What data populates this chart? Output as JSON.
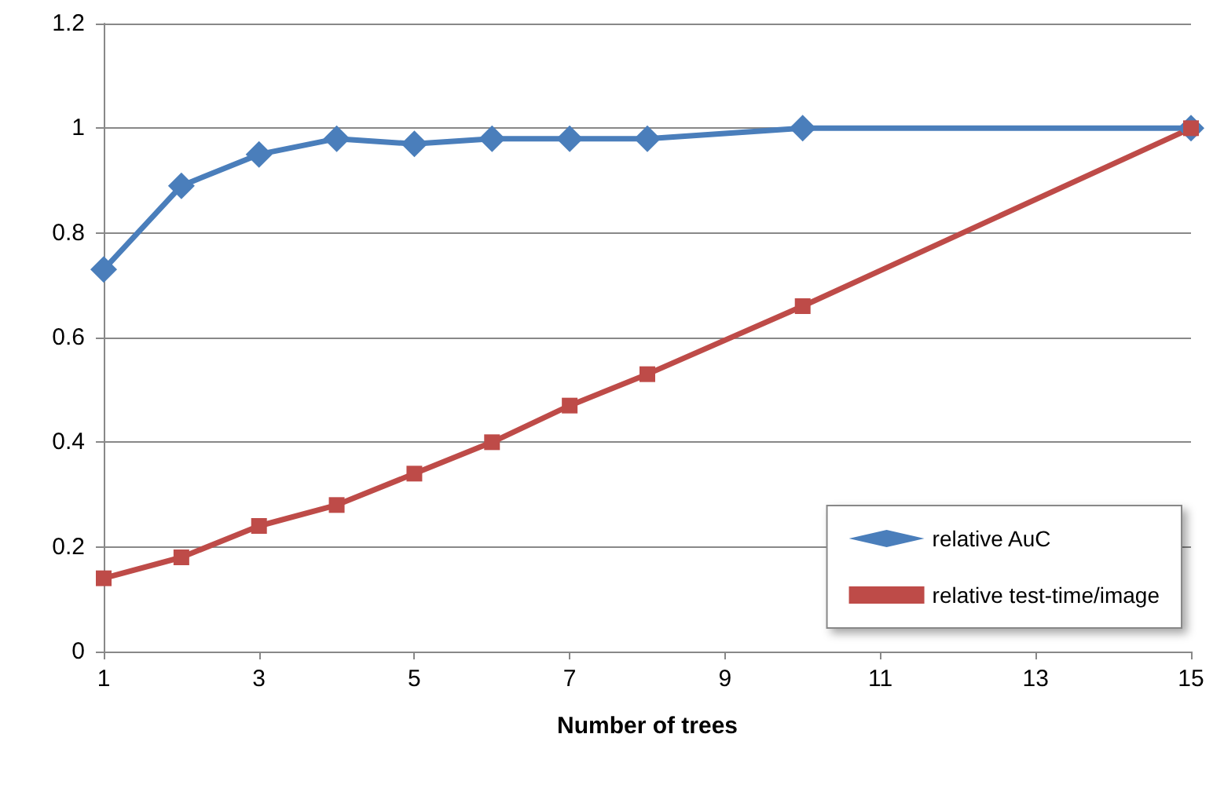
{
  "chart_data": {
    "type": "line",
    "xlabel": "Number of trees",
    "x": [
      1,
      2,
      3,
      4,
      5,
      6,
      7,
      8,
      10,
      15
    ],
    "series": [
      {
        "name": "relative AuC",
        "color": "#4a7ebb",
        "marker": "diamond",
        "values": [
          0.73,
          0.89,
          0.95,
          0.98,
          0.97,
          0.98,
          0.98,
          0.98,
          1.0,
          1.0
        ]
      },
      {
        "name": "relative test-time/image",
        "color": "#be4b48",
        "marker": "square",
        "values": [
          0.14,
          0.18,
          0.24,
          0.28,
          0.34,
          0.4,
          0.47,
          0.53,
          0.66,
          1.0
        ]
      }
    ],
    "xlim": [
      1,
      15
    ],
    "xticks": [
      1,
      3,
      5,
      7,
      9,
      11,
      13,
      15
    ],
    "ylim": [
      0,
      1.2
    ],
    "yticks": [
      0,
      0.2,
      0.4,
      0.6,
      0.8,
      1,
      1.2
    ],
    "grid": "y",
    "legend": "bottom right",
    "line_style": "solid"
  }
}
